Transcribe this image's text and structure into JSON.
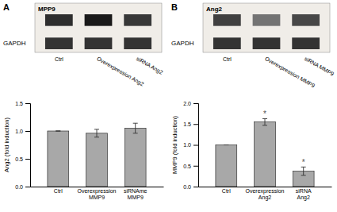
{
  "chart_data": [
    {
      "type": "heatmap",
      "title": "A",
      "categories": [
        "Ctrl",
        "Overexpression Ang2",
        "siRNA Ang2"
      ],
      "series": [
        {
          "name": "MPP9",
          "values": [
            0.82,
            0.9,
            0.78
          ]
        },
        {
          "name": "GAPDH",
          "values": [
            0.8,
            0.8,
            0.8
          ]
        }
      ]
    },
    {
      "type": "heatmap",
      "title": "B",
      "categories": [
        "Ctrl",
        "Overexpression MMP9",
        "siRNA MMP9"
      ],
      "series": [
        {
          "name": "Ang2",
          "values": [
            0.75,
            0.55,
            0.72
          ]
        },
        {
          "name": "GAPDH",
          "values": [
            0.8,
            0.8,
            0.8
          ]
        }
      ]
    },
    {
      "type": "bar",
      "y_label": "Ang2 (fold induction)",
      "categories": [
        "Ctrl",
        "Overexpression\nMMP9",
        "siRNAme\nMMP9"
      ],
      "values": [
        1.0,
        0.96,
        1.05
      ],
      "errors": [
        0.0,
        0.07,
        0.09
      ],
      "color": "#a8a8a8",
      "ylim": [
        0,
        1.5
      ],
      "yticks": [
        {
          "value": 0,
          "label": "0.0"
        },
        0.5,
        {
          "value": 1,
          "label": "1.0"
        },
        1.5
      ]
    },
    {
      "type": "bar",
      "y_label": "MMP9 (fold induction)",
      "categories": [
        "Ctrl",
        "Overexpression\nAng2",
        "siRNA\nAng2"
      ],
      "values": [
        1.0,
        1.55,
        0.37
      ],
      "errors": [
        0.0,
        0.08,
        0.1
      ],
      "color": "#a8a8a8",
      "ylim": [
        0,
        2.0
      ],
      "yticks": [
        {
          "value": 0,
          "label": "0.0"
        },
        0.5,
        {
          "value": 1,
          "label": "1.0"
        },
        1.5,
        {
          "value": 2,
          "label": "2.0"
        }
      ],
      "annotations": [
        {
          "category": "Overexpression\nAng2",
          "text": "*"
        },
        {
          "category": "siRNA\nAng2",
          "text": "*"
        }
      ]
    }
  ]
}
